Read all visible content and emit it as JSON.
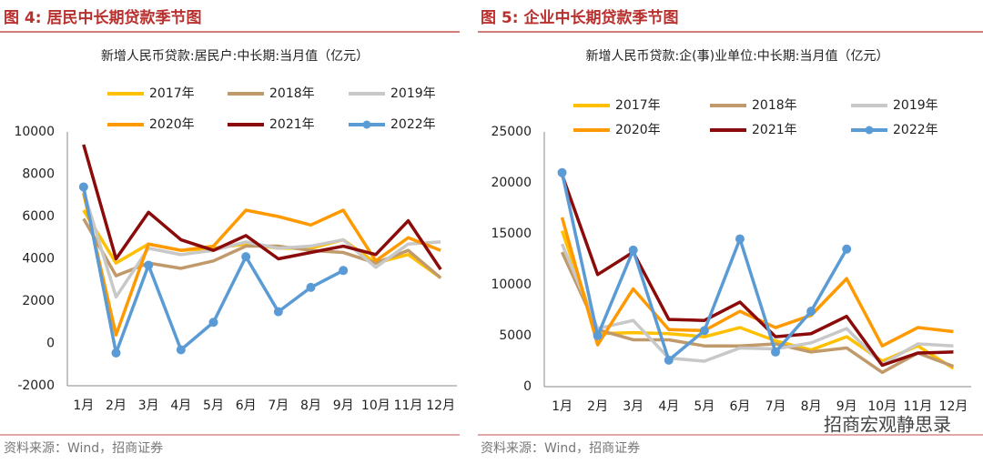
{
  "figures": [
    {
      "caption": "图 4: 居民中长期贷款季节图",
      "source": "资料来源：Wind，招商证券"
    },
    {
      "caption": "图 5: 企业中长期贷款季节图",
      "source": "资料来源：Wind，招商证券"
    }
  ],
  "watermark": "招商宏观静思录",
  "chart_data": [
    {
      "type": "line",
      "title": "新增人民币贷款:居民户:中长期:当月值（亿元）",
      "categories": [
        "1月",
        "2月",
        "3月",
        "4月",
        "5月",
        "6月",
        "7月",
        "8月",
        "9月",
        "10月",
        "11月",
        "12月"
      ],
      "ylim": [
        -2000,
        10000
      ],
      "yticks": [
        -2000,
        0,
        2000,
        4000,
        6000,
        8000,
        10000
      ],
      "grid": false,
      "legend": "top",
      "series": [
        {
          "name": "2017年",
          "color": "#FFC000",
          "values": [
            6300,
            3800,
            4700,
            4400,
            4500,
            4700,
            4500,
            4500,
            4900,
            3800,
            4200,
            3100
          ]
        },
        {
          "name": "2018年",
          "color": "#C09A6B",
          "values": [
            5900,
            3200,
            3800,
            3550,
            3900,
            4600,
            4600,
            4400,
            4300,
            3800,
            4400,
            3100
          ]
        },
        {
          "name": "2019年",
          "color": "#C8C8C8",
          "values": [
            7200,
            2200,
            4500,
            4200,
            4400,
            4800,
            4500,
            4600,
            4900,
            3600,
            4700,
            4800
          ]
        },
        {
          "name": "2020年",
          "color": "#FF9900",
          "values": [
            7100,
            400,
            4700,
            4400,
            4600,
            6300,
            6000,
            5600,
            6300,
            3900,
            5000,
            4400
          ]
        },
        {
          "name": "2021年",
          "color": "#8B0A0A",
          "values": [
            9400,
            4000,
            6200,
            4900,
            4400,
            5100,
            4000,
            4300,
            4600,
            4200,
            5800,
            3500
          ]
        },
        {
          "name": "2022年",
          "color": "#5B9BD5",
          "marker": true,
          "values": [
            7400,
            -450,
            3700,
            -300,
            1000,
            4100,
            1500,
            2650,
            3450,
            null,
            null,
            null
          ]
        }
      ]
    },
    {
      "type": "line",
      "title": "新增人民币贷款:企(事)业单位:中长期:当月值（亿元）",
      "categories": [
        "1月",
        "2月",
        "3月",
        "4月",
        "5月",
        "6月",
        "7月",
        "8月",
        "9月",
        "10月",
        "11月",
        "12月"
      ],
      "ylim": [
        0,
        25000
      ],
      "yticks": [
        0,
        5000,
        10000,
        15000,
        20000,
        25000
      ],
      "grid": false,
      "legend": "top",
      "series": [
        {
          "name": "2017年",
          "color": "#FFC000",
          "values": [
            15300,
            5200,
            5300,
            5200,
            4900,
            5800,
            4500,
            3600,
            4900,
            2500,
            4000,
            1800
          ]
        },
        {
          "name": "2018年",
          "color": "#C09A6B",
          "values": [
            13200,
            5600,
            4600,
            4600,
            4000,
            4000,
            4200,
            3400,
            3800,
            1400,
            3300,
            2000
          ]
        },
        {
          "name": "2019年",
          "color": "#C8C8C8",
          "values": [
            14000,
            5700,
            6500,
            2800,
            2500,
            3800,
            3700,
            4300,
            5700,
            2200,
            4200,
            4000
          ]
        },
        {
          "name": "2020年",
          "color": "#FF9900",
          "values": [
            16600,
            4100,
            9600,
            5600,
            5500,
            7400,
            5800,
            7000,
            10600,
            4000,
            5800,
            5400
          ]
        },
        {
          "name": "2021年",
          "color": "#8B0A0A",
          "values": [
            20800,
            11000,
            13200,
            6600,
            6500,
            8300,
            4900,
            5200,
            6900,
            2100,
            3300,
            3400
          ]
        },
        {
          "name": "2022年",
          "color": "#5B9BD5",
          "marker": true,
          "values": [
            21000,
            5000,
            13400,
            2600,
            5500,
            14500,
            3400,
            7400,
            13500,
            null,
            null,
            null
          ]
        }
      ]
    }
  ]
}
